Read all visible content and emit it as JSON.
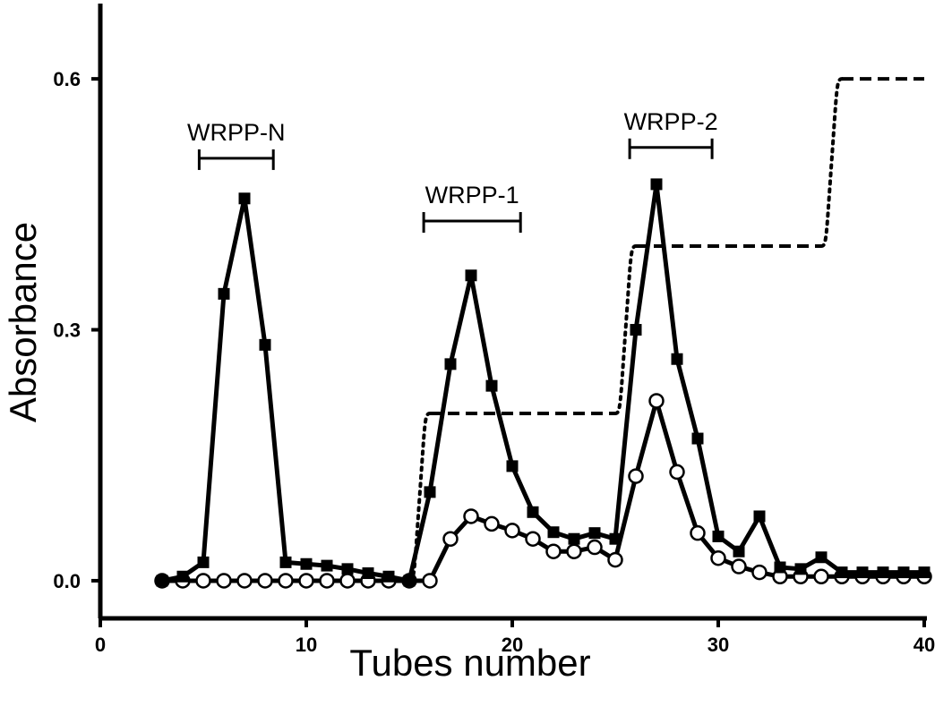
{
  "chart_data": {
    "type": "line",
    "xlabel": "Tubes number",
    "ylabel": "Absorbance",
    "xlim": [
      0,
      40
    ],
    "ylim": [
      -0.045,
      0.69
    ],
    "x_ticks": [
      0,
      10,
      20,
      30,
      40
    ],
    "x_tick_labels": [
      "0",
      "10",
      "20",
      "30",
      "40"
    ],
    "y_ticks": [
      0.0,
      0.3,
      0.6
    ],
    "y_tick_labels": [
      "0.0",
      "0.3",
      "0.6"
    ],
    "grid": false,
    "series": [
      {
        "marker": "filled-square",
        "style": "solid",
        "x": [
          3,
          4,
          5,
          6,
          7,
          8,
          9,
          10,
          11,
          12,
          13,
          14,
          15,
          16,
          17,
          18,
          19,
          20,
          21,
          22,
          23,
          24,
          25,
          26,
          27,
          28,
          29,
          30,
          31,
          32,
          33,
          34,
          35,
          36,
          37,
          38,
          39,
          40
        ],
        "y": [
          0.0,
          0.005,
          0.022,
          0.343,
          0.457,
          0.282,
          0.022,
          0.02,
          0.018,
          0.014,
          0.009,
          0.005,
          0.0,
          0.106,
          0.259,
          0.365,
          0.233,
          0.137,
          0.082,
          0.058,
          0.05,
          0.057,
          0.05,
          0.3,
          0.474,
          0.265,
          0.17,
          0.053,
          0.035,
          0.077,
          0.016,
          0.014,
          0.028,
          0.01,
          0.01,
          0.01,
          0.01,
          0.01
        ]
      },
      {
        "marker": "open-circle",
        "style": "solid",
        "x": [
          3,
          4,
          5,
          6,
          7,
          8,
          9,
          10,
          11,
          12,
          13,
          14,
          15,
          16,
          17,
          18,
          19,
          20,
          21,
          22,
          23,
          24,
          25,
          26,
          27,
          28,
          29,
          30,
          31,
          32,
          33,
          34,
          35,
          36,
          37,
          38,
          39,
          40
        ],
        "y": [
          0.0,
          0.0,
          0.0,
          0.0,
          0.0,
          0.0,
          0.0,
          0.0,
          0.0,
          0.0,
          0.0,
          0.0,
          0.0,
          0.0,
          0.05,
          0.077,
          0.068,
          0.06,
          0.05,
          0.035,
          0.035,
          0.04,
          0.025,
          0.125,
          0.215,
          0.13,
          0.057,
          0.027,
          0.017,
          0.01,
          0.005,
          0.005,
          0.005,
          0.005,
          0.005,
          0.005,
          0.005,
          0.005
        ]
      },
      {
        "marker": "none",
        "style": "dashed-gradient",
        "x": [
          3,
          15,
          16,
          25,
          26,
          35,
          36,
          40
        ],
        "y": [
          0.0,
          0.0,
          0.2,
          0.2,
          0.4,
          0.4,
          0.6,
          0.6
        ]
      }
    ],
    "brackets": [
      {
        "label": "WRPP-N",
        "x_start": 4.8,
        "x_end": 8.4,
        "y": 0.505
      },
      {
        "label": "WRPP-1",
        "x_start": 15.7,
        "x_end": 20.4,
        "y": 0.43
      },
      {
        "label": "WRPP-2",
        "x_start": 25.7,
        "x_end": 29.7,
        "y": 0.518
      }
    ]
  }
}
